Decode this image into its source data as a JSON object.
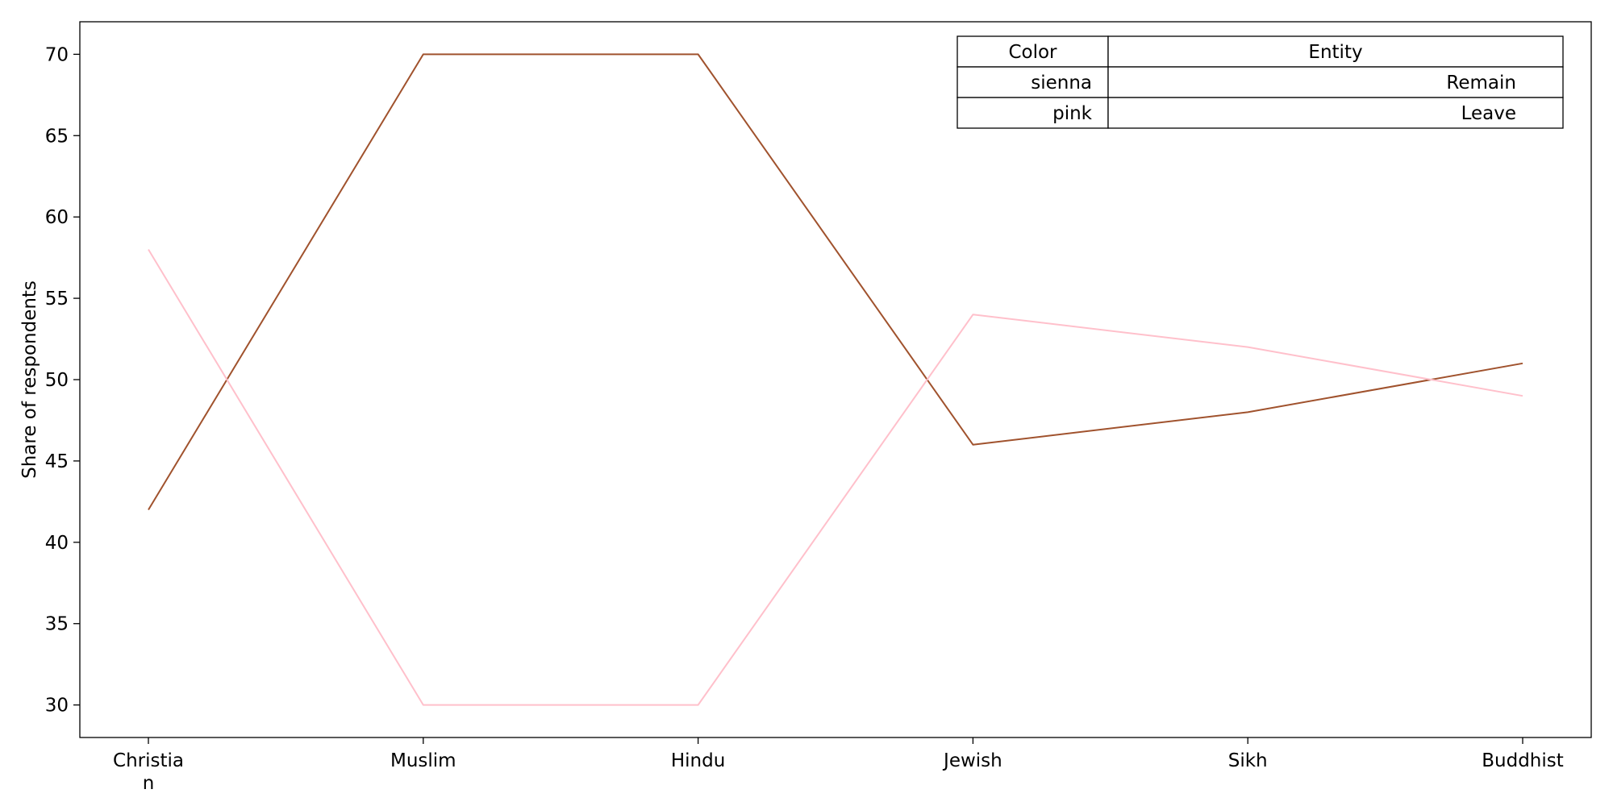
{
  "chart_data": {
    "type": "line",
    "title": "",
    "xlabel": "",
    "ylabel": "Share of respondents",
    "categories": [
      "Christian",
      "Muslim",
      "Hindu",
      "Jewish",
      "Sikh",
      "Buddhist"
    ],
    "category_display": [
      [
        "Christia",
        "n"
      ],
      [
        "Muslim"
      ],
      [
        "Hindu"
      ],
      [
        "Jewish"
      ],
      [
        "Sikh"
      ],
      [
        "Buddhist"
      ]
    ],
    "ylim": [
      28,
      72
    ],
    "yticks": [
      30,
      35,
      40,
      45,
      50,
      55,
      60,
      65,
      70
    ],
    "grid": false,
    "legend_placement": "top-right",
    "series": [
      {
        "name": "Remain",
        "color_name": "sienna",
        "color": "#a0522d",
        "values": [
          42,
          70,
          70,
          46,
          48,
          51
        ]
      },
      {
        "name": "Leave",
        "color_name": "pink",
        "color": "#ffc0cb",
        "values": [
          58,
          30,
          30,
          54,
          52,
          49
        ]
      }
    ],
    "legend_table": {
      "headers": [
        "Color",
        "Entity"
      ],
      "rows": [
        [
          "sienna",
          "Remain"
        ],
        [
          "pink",
          "Leave"
        ]
      ]
    }
  }
}
